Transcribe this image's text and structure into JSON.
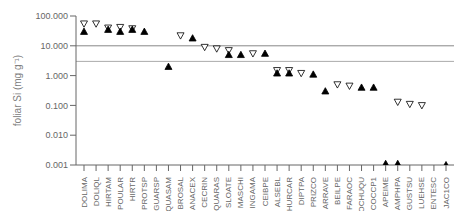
{
  "chart_data": {
    "type": "scatter",
    "categories": [
      "DOLIMA",
      "DOLIQL",
      "HIRTAM",
      "POULAR",
      "HIRTR",
      "PROTSP",
      "GUARSP",
      "QUASAM",
      "BROSAL",
      "ANACEX",
      "CECRIN",
      "QUARAS",
      "SLOATE",
      "MASCHI",
      "INGAMA",
      "CEIBPE",
      "ALSEBL",
      "HURCAR",
      "DIPTPA",
      "PRIZCO",
      "ARRAVE",
      "BEILPE",
      "FARAOC",
      "POCHUQU",
      "COCCP1",
      "APEIME",
      "AMPHPA",
      "GUSTSU",
      "LUEHSE",
      "ENTESC",
      "JAC1CO"
    ],
    "series": [
      {
        "color": "#000000",
        "marker": "triangle-down-open",
        "values": [
          55,
          55,
          40,
          42,
          38,
          null,
          null,
          null,
          22,
          null,
          9.0,
          8.0,
          7.0,
          null,
          5.5,
          null,
          1.5,
          1.5,
          1.2,
          null,
          null,
          0.5,
          0.45,
          null,
          null,
          null,
          0.13,
          0.11,
          0.1,
          null,
          null
        ]
      },
      {
        "color": "#000000",
        "marker": "triangle-up",
        "values": [
          30,
          null,
          35,
          30,
          35,
          30,
          null,
          2.0,
          null,
          18,
          null,
          null,
          5.0,
          5.0,
          null,
          5.5,
          1.2,
          1.2,
          null,
          1.1,
          0.3,
          null,
          null,
          0.4,
          0.4,
          0.0011,
          0.0011,
          null,
          null,
          null,
          0.001
        ]
      }
    ],
    "reference_lines": [
      {
        "value": 10.0,
        "color": "#888888"
      },
      {
        "value": 3.0,
        "color": "#aaaaaa"
      }
    ],
    "ylabel": "foliar Si (mg g⁻¹)",
    "log": "y",
    "ylim": [
      0.001,
      100.0
    ],
    "yticks": [
      0.001,
      {
        "value": 0.01,
        "label": "0.010"
      },
      {
        "value": 0.1,
        "label": "0.100"
      },
      {
        "value": 1,
        "label": "1.000"
      },
      {
        "value": 10,
        "label": "10.000"
      },
      {
        "value": 100,
        "label": "100.000"
      }
    ],
    "grid": false
  }
}
